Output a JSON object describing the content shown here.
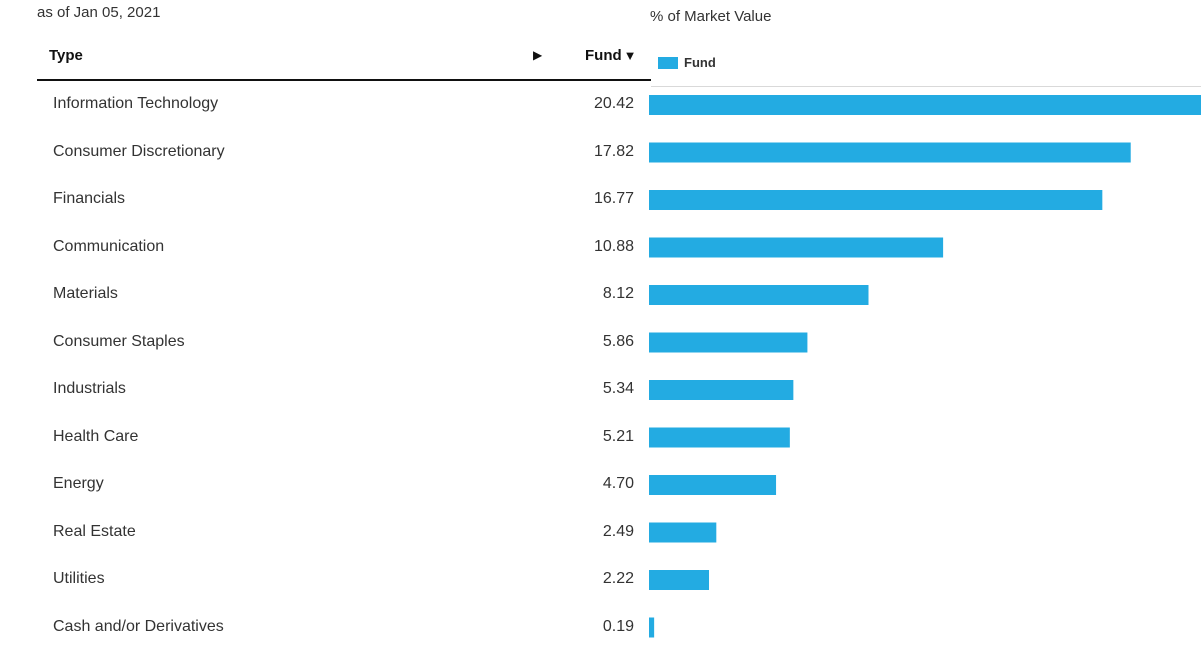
{
  "header": {
    "as_of": "as of Jan 05, 2021",
    "chart_title": "% of Market Value",
    "col_type": "Type",
    "col_fund": "Fund",
    "sort_arrow": "▶",
    "sort_desc": "▼"
  },
  "legend": {
    "label": "Fund",
    "color": "#23ABE2"
  },
  "chart_data": {
    "type": "bar",
    "orientation": "horizontal",
    "title": "% of Market Value",
    "categories": [
      "Information Technology",
      "Consumer Discretionary",
      "Financials",
      "Communication",
      "Materials",
      "Consumer Staples",
      "Industrials",
      "Health Care",
      "Energy",
      "Real Estate",
      "Utilities",
      "Cash and/or Derivatives"
    ],
    "value_labels": [
      "20.42",
      "17.82",
      "16.77",
      "10.88",
      "8.12",
      "5.86",
      "5.34",
      "5.21",
      "4.70",
      "2.49",
      "2.22",
      "0.19"
    ],
    "series": [
      {
        "name": "Fund",
        "color": "#23ABE2",
        "values": [
          20.42,
          17.82,
          16.77,
          10.88,
          8.12,
          5.86,
          5.34,
          5.21,
          4.7,
          2.49,
          2.22,
          0.19
        ]
      }
    ],
    "xlim": [
      0,
      20.42
    ],
    "grid": false,
    "legend_position": "top-left"
  }
}
